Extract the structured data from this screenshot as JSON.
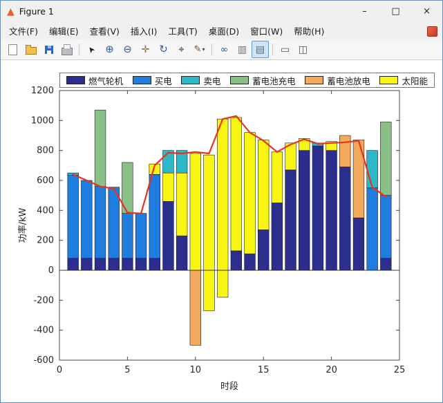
{
  "window": {
    "title": "Figure 1",
    "logo_glyph": "▲",
    "controls": {
      "minimize": "–",
      "maximize": "□",
      "close": "×"
    }
  },
  "menu": {
    "items": [
      {
        "name": "file",
        "label": "文件(F)"
      },
      {
        "name": "edit",
        "label": "编辑(E)"
      },
      {
        "name": "view",
        "label": "查看(V)"
      },
      {
        "name": "insert",
        "label": "插入(I)"
      },
      {
        "name": "tools",
        "label": "工具(T)"
      },
      {
        "name": "desktop",
        "label": "桌面(D)"
      },
      {
        "name": "window",
        "label": "窗口(W)"
      },
      {
        "name": "help",
        "label": "帮助(H)"
      }
    ]
  },
  "toolbar": {
    "buttons": [
      {
        "name": "new-figure",
        "shape": "page"
      },
      {
        "name": "open-file",
        "shape": "folder"
      },
      {
        "name": "save-figure",
        "shape": "floppy"
      },
      {
        "name": "print-figure",
        "shape": "printer"
      },
      {
        "type": "sep"
      },
      {
        "name": "edit-plot",
        "glyph": "➤",
        "cls": "g-cursor"
      },
      {
        "name": "zoom-in",
        "glyph": "⊕",
        "cls": "g-zoom"
      },
      {
        "name": "zoom-out",
        "glyph": "⊖",
        "cls": "g-zoom"
      },
      {
        "name": "pan",
        "glyph": "✛",
        "cls": "g-pan"
      },
      {
        "name": "rotate-3d",
        "glyph": "↻",
        "cls": "g-rot"
      },
      {
        "name": "data-cursor",
        "glyph": "⌖",
        "cls": "g-dc"
      },
      {
        "name": "brush-data",
        "glyph": "✎",
        "cls": "g-brush",
        "dropdown": "▾"
      },
      {
        "type": "sep"
      },
      {
        "name": "link-plots",
        "glyph": "∞",
        "cls": "g-link"
      },
      {
        "name": "insert-colorbar",
        "glyph": "▥",
        "cls": "g-cbar"
      },
      {
        "name": "insert-legend",
        "glyph": "▤",
        "cls": "g-legend",
        "active": true
      },
      {
        "type": "sep"
      },
      {
        "name": "hide-plot-tools",
        "glyph": "▭",
        "cls": "g-tools"
      },
      {
        "name": "dock-figure",
        "glyph": "◫",
        "cls": "g-dock"
      }
    ]
  },
  "chart_data": {
    "type": "bar",
    "subtype": "stacked-bars-with-line-overlay",
    "title": "",
    "xlabel": "时段",
    "ylabel": "功率/kW",
    "xlim": [
      0,
      25
    ],
    "ylim": [
      -600,
      1200
    ],
    "xticks": [
      0,
      5,
      10,
      15,
      20,
      25
    ],
    "yticks": [
      -600,
      -400,
      -200,
      0,
      200,
      400,
      600,
      800,
      1000,
      1200
    ],
    "grid": false,
    "legend_position": "top",
    "legend_order": [
      "gas",
      "buy",
      "sell",
      "charge",
      "discharge",
      "solar"
    ],
    "series_labels": {
      "gas": "燃气轮机",
      "buy": "买电",
      "sell": "卖电",
      "charge": "蓄电池充电",
      "discharge": "蓄电池放电",
      "solar": "太阳能"
    },
    "series_colors": {
      "gas": "#2b2e8c",
      "buy": "#1f7de0",
      "sell": "#2cb8c8",
      "charge": "#8abf88",
      "discharge": "#f2a95c",
      "solar": "#f8f414"
    },
    "bar_width": 0.8,
    "hours": [
      1,
      2,
      3,
      4,
      5,
      6,
      7,
      8,
      9,
      10,
      11,
      12,
      13,
      14,
      15,
      16,
      17,
      18,
      19,
      20,
      21,
      22,
      23,
      24
    ],
    "bars": [
      [
        [
          "gas",
          80
        ],
        [
          "buy",
          555
        ],
        [
          "sell",
          15
        ]
      ],
      [
        [
          "gas",
          80
        ],
        [
          "buy",
          520
        ]
      ],
      [
        [
          "gas",
          80
        ],
        [
          "buy",
          480
        ],
        [
          "charge",
          510
        ]
      ],
      [
        [
          "gas",
          80
        ],
        [
          "buy",
          475
        ]
      ],
      [
        [
          "gas",
          80
        ],
        [
          "buy",
          300
        ],
        [
          "charge",
          340
        ]
      ],
      [
        [
          "gas",
          80
        ],
        [
          "buy",
          300
        ]
      ],
      [
        [
          "gas",
          80
        ],
        [
          "buy",
          560
        ],
        [
          "solar",
          70
        ]
      ],
      [
        [
          "gas",
          460
        ],
        [
          "solar",
          190
        ],
        [
          "sell",
          150
        ]
      ],
      [
        [
          "gas",
          230
        ],
        [
          "solar",
          420
        ],
        [
          "sell",
          150
        ]
      ],
      [
        [
          "solar",
          780
        ],
        [
          "discharge",
          -500
        ]
      ],
      [
        [
          "solar",
          770
        ],
        [
          "solar",
          -270
        ]
      ],
      [
        [
          "solar",
          1010
        ],
        [
          "solar",
          -180
        ]
      ],
      [
        [
          "gas",
          130
        ],
        [
          "solar",
          890
        ]
      ],
      [
        [
          "gas",
          110
        ],
        [
          "solar",
          810
        ]
      ],
      [
        [
          "gas",
          270
        ],
        [
          "solar",
          600
        ]
      ],
      [
        [
          "gas",
          450
        ],
        [
          "solar",
          340
        ]
      ],
      [
        [
          "gas",
          670
        ],
        [
          "solar",
          180
        ]
      ],
      [
        [
          "gas",
          800
        ],
        [
          "solar",
          80
        ]
      ],
      [
        [
          "gas",
          830
        ],
        [
          "sell",
          20
        ]
      ],
      [
        [
          "gas",
          800
        ],
        [
          "solar",
          60
        ]
      ],
      [
        [
          "gas",
          690
        ],
        [
          "discharge",
          210
        ]
      ],
      [
        [
          "gas",
          350
        ],
        [
          "discharge",
          520
        ]
      ],
      [
        [
          "buy",
          550
        ],
        [
          "sell",
          250
        ]
      ],
      [
        [
          "gas",
          80
        ],
        [
          "buy",
          420
        ],
        [
          "charge",
          490
        ]
      ]
    ],
    "line": {
      "color": "#e8321f",
      "width": 2.2,
      "values": [
        640,
        600,
        560,
        545,
        385,
        380,
        700,
        785,
        780,
        790,
        780,
        1010,
        1030,
        920,
        865,
        790,
        840,
        875,
        845,
        850,
        855,
        865,
        555,
        490
      ]
    }
  }
}
